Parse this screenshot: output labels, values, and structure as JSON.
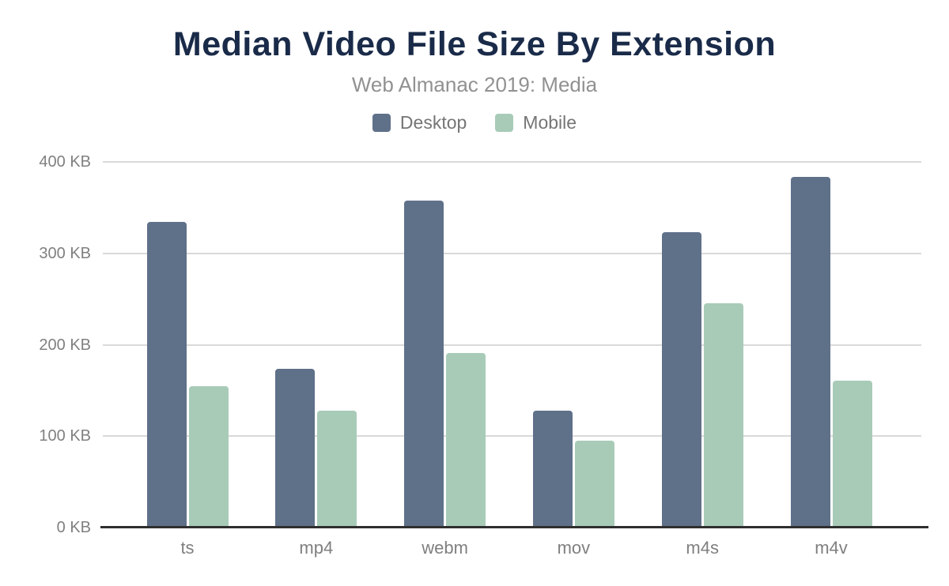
{
  "header": {
    "title": "Median Video File Size By Extension",
    "subtitle": "Web Almanac 2019: Media"
  },
  "legend": {
    "items": [
      {
        "label": "Desktop",
        "color": "#5f7089"
      },
      {
        "label": "Mobile",
        "color": "#a8cbb8"
      }
    ]
  },
  "chart_data": {
    "type": "bar",
    "title": "Median Video File Size By Extension",
    "subtitle": "Web Almanac 2019: Media",
    "unit": "KB",
    "categories": [
      "ts",
      "mp4",
      "webm",
      "mov",
      "m4s",
      "m4v"
    ],
    "series": [
      {
        "name": "Desktop",
        "color": "#5f7089",
        "values": [
          334,
          174,
          358,
          128,
          323,
          384
        ]
      },
      {
        "name": "Mobile",
        "color": "#a8cbb8",
        "values": [
          155,
          128,
          191,
          95,
          245,
          161
        ]
      }
    ],
    "ylim": [
      0,
      400
    ],
    "yticks": [
      {
        "value": 400,
        "label": "400 KB"
      },
      {
        "value": 300,
        "label": "300 KB"
      },
      {
        "value": 200,
        "label": "200 KB"
      },
      {
        "value": 100,
        "label": "100 KB"
      },
      {
        "value": 0,
        "label": "0 KB"
      }
    ],
    "grid": true,
    "legend_position": "top"
  }
}
